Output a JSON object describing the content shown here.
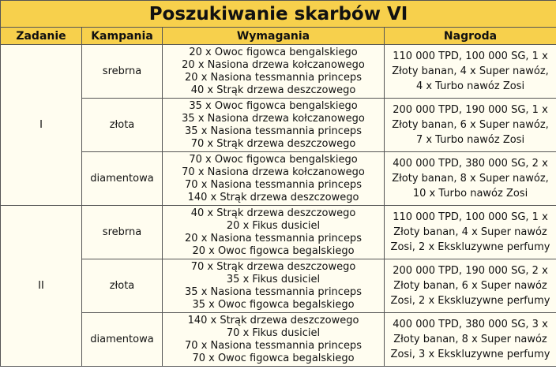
{
  "title": "Poszukiwanie skarbów VI",
  "headers": [
    "Zadanie",
    "Kampania",
    "Wymagania",
    "Nagroda"
  ],
  "tasks": [
    {
      "name": "I",
      "campaigns": [
        {
          "level": "srebrna",
          "requirements": [
            "20 x Owoc figowca bengalskiego",
            "20 x Nasiona drzewa kołczanowego",
            "20 x Nasiona tessmannia princeps",
            "40 x Strąk drzewa deszczowego"
          ],
          "reward": "110 000 TPD, 100 000 SG, 1 x Złoty banan, 4 x Super nawóz, 4 x Turbo nawóz Zosi"
        },
        {
          "level": "złota",
          "requirements": [
            "35 x Owoc figowca bengalskiego",
            "35 x Nasiona drzewa kołczanowego",
            "35 x Nasiona tessmannia princeps",
            "70 x Strąk drzewa deszczowego"
          ],
          "reward": "200 000 TPD, 190 000 SG, 1 x Złoty banan, 6 x Super nawóz, 7 x Turbo nawóz Zosi"
        },
        {
          "level": "diamentowa",
          "requirements": [
            "70 x Owoc figowca bengalskiego",
            "70 x Nasiona drzewa kołczanowego",
            "70 x Nasiona tessmannia princeps",
            "140 x Strąk drzewa deszczowego"
          ],
          "reward": "400 000 TPD, 380 000 SG, 2 x Złoty banan, 8 x Super nawóz, 10 x Turbo nawóz Zosi"
        }
      ]
    },
    {
      "name": "II",
      "campaigns": [
        {
          "level": "srebrna",
          "requirements": [
            "40 x Strąk drzewa deszczowego",
            "20 x Fikus dusiciel",
            "20 x Nasiona tessmannia princeps",
            "20 x Owoc figowca begalskiego"
          ],
          "reward": "110 000 TPD, 100 000 SG, 1 x Złoty banan, 4 x Super nawóz Zosi, 2 x Ekskluzywne perfumy"
        },
        {
          "level": "złota",
          "requirements": [
            "70 x Strąk drzewa deszczowego",
            "35 x Fikus dusiciel",
            "35 x Nasiona tessmannia princeps",
            "35 x Owoc figowca begalskiego"
          ],
          "reward": "200 000 TPD, 190 000 SG, 2 x Złoty banan, 6 x Super nawóz Zosi, 2 x Ekskluzywne perfumy"
        },
        {
          "level": "diamentowa",
          "requirements": [
            "140 x Strąk drzewa deszczowego",
            "70 x Fikus dusiciel",
            "70 x Nasiona tessmannia princeps",
            "70 x Owoc figowca begalskiego"
          ],
          "reward": "400 000 TPD, 380 000 SG, 3 x Złoty banan, 8 x Super nawóz Zosi, 3 x Ekskluzywne perfumy"
        }
      ]
    }
  ]
}
